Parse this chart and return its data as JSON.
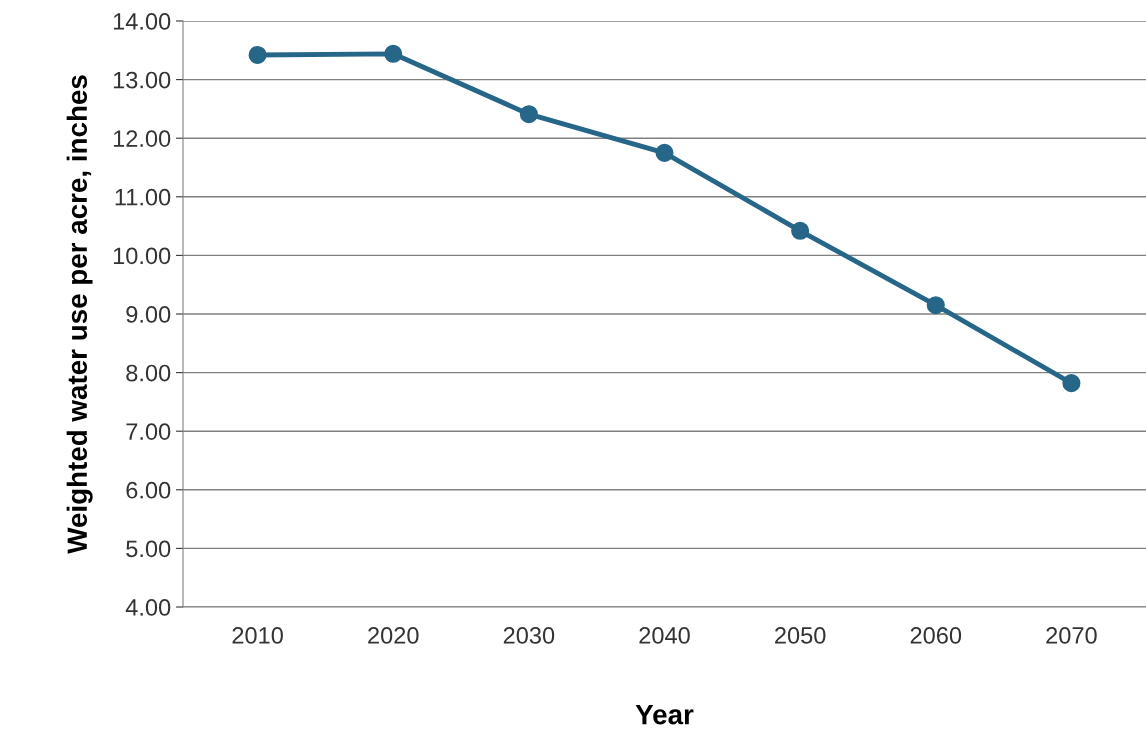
{
  "chart_data": {
    "type": "line",
    "xlabel": "Year",
    "ylabel": "Weighted water use per acre, inches",
    "categories": [
      "2010",
      "2020",
      "2030",
      "2040",
      "2050",
      "2060",
      "2070"
    ],
    "series": [
      {
        "color": "#266688",
        "values": [
          13.42,
          13.44,
          12.41,
          11.75,
          10.42,
          9.15,
          7.82
        ]
      }
    ],
    "ylim": [
      4,
      14
    ],
    "yticks": [
      {
        "value": 4,
        "label": "4.00"
      },
      {
        "value": 5,
        "label": "5.00"
      },
      {
        "value": 6,
        "label": "6.00"
      },
      {
        "value": 7,
        "label": "7.00"
      },
      {
        "value": 8,
        "label": "8.00"
      },
      {
        "value": 9,
        "label": "9.00"
      },
      {
        "value": 10,
        "label": "10.00"
      },
      {
        "value": 11,
        "label": "11.00"
      },
      {
        "value": 12,
        "label": "12.00"
      },
      {
        "value": 13,
        "label": "13.00"
      },
      {
        "value": 14,
        "label": "14.00"
      }
    ],
    "grid": "y",
    "marker": "circle",
    "line_style": "solid"
  }
}
